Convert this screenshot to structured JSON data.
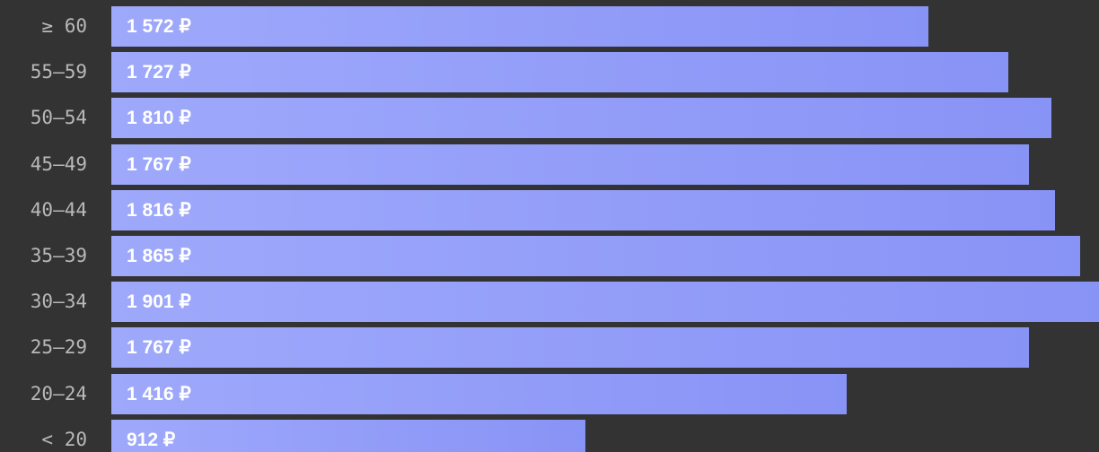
{
  "chart_data": {
    "type": "bar",
    "orientation": "horizontal",
    "categories": [
      "≥ 60",
      "55—59",
      "50—54",
      "45—49",
      "40—44",
      "35—39",
      "30—34",
      "25—29",
      "20—24",
      "< 20"
    ],
    "values": [
      1572,
      1727,
      1810,
      1767,
      1816,
      1865,
      1901,
      1767,
      1416,
      912
    ],
    "value_labels": [
      "1 572 ₽",
      "1 727 ₽",
      "1 810 ₽",
      "1 767 ₽",
      "1 816 ₽",
      "1 865 ₽",
      "1 901 ₽",
      "1 767 ₽",
      "1 416 ₽",
      "912 ₽"
    ],
    "xlim": [
      0,
      1901
    ],
    "grid": false,
    "legend": "none"
  },
  "colors": {
    "background": "#333333",
    "bar_start": "#9fa9fb",
    "bar_end": "#8893f6",
    "category_label": "#b9b9b9",
    "value_label": "#ffffff"
  }
}
